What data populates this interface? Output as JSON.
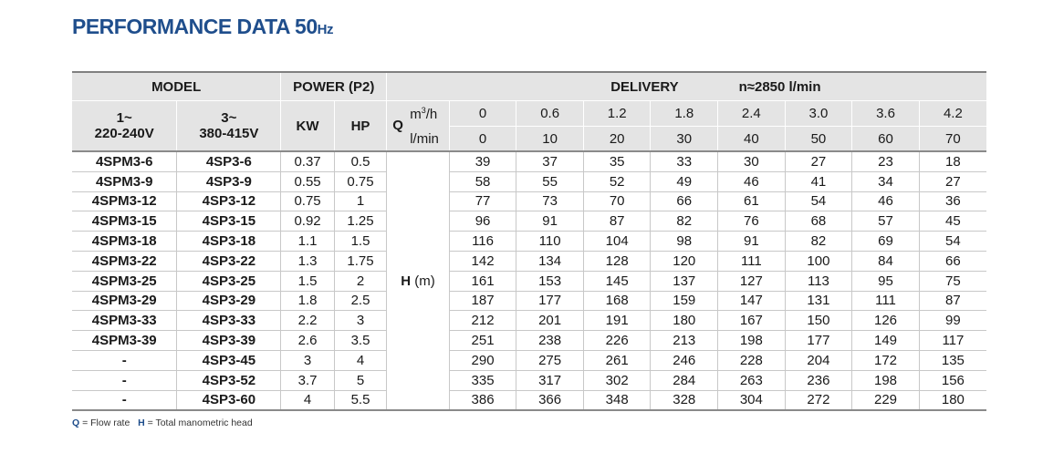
{
  "title": "PERFORMANCE DATA 50",
  "title_unit": "Hz",
  "header": {
    "model": "MODEL",
    "power": "POWER (P2)",
    "delivery": "DELIVERY",
    "speed": "n≈2850 l/min",
    "phase1_line1": "1~",
    "phase1_line2": "220-240V",
    "phase3_line1": "3~",
    "phase3_line2": "380-415V",
    "kw": "KW",
    "hp": "HP",
    "q": "Q",
    "unit_m3h_base": "m",
    "unit_m3h_sup": "3",
    "unit_m3h_tail": "/h",
    "unit_lmin": "l/min",
    "flow_m3h": [
      "0",
      "0.6",
      "1.2",
      "1.8",
      "2.4",
      "3.0",
      "3.6",
      "4.2"
    ],
    "flow_lmin": [
      "0",
      "10",
      "20",
      "30",
      "40",
      "50",
      "60",
      "70"
    ],
    "h_label": "H",
    "h_unit": "(m)"
  },
  "rows": [
    {
      "m1": "4SPM3-6",
      "m3": "4SP3-6",
      "kw": "0.37",
      "hp": "0.5",
      "h": [
        "39",
        "37",
        "35",
        "33",
        "30",
        "27",
        "23",
        "18"
      ]
    },
    {
      "m1": "4SPM3-9",
      "m3": "4SP3-9",
      "kw": "0.55",
      "hp": "0.75",
      "h": [
        "58",
        "55",
        "52",
        "49",
        "46",
        "41",
        "34",
        "27"
      ]
    },
    {
      "m1": "4SPM3-12",
      "m3": "4SP3-12",
      "kw": "0.75",
      "hp": "1",
      "h": [
        "77",
        "73",
        "70",
        "66",
        "61",
        "54",
        "46",
        "36"
      ]
    },
    {
      "m1": "4SPM3-15",
      "m3": "4SP3-15",
      "kw": "0.92",
      "hp": "1.25",
      "h": [
        "96",
        "91",
        "87",
        "82",
        "76",
        "68",
        "57",
        "45"
      ]
    },
    {
      "m1": "4SPM3-18",
      "m3": "4SP3-18",
      "kw": "1.1",
      "hp": "1.5",
      "h": [
        "116",
        "110",
        "104",
        "98",
        "91",
        "82",
        "69",
        "54"
      ]
    },
    {
      "m1": "4SPM3-22",
      "m3": "4SP3-22",
      "kw": "1.3",
      "hp": "1.75",
      "h": [
        "142",
        "134",
        "128",
        "120",
        "111",
        "100",
        "84",
        "66"
      ]
    },
    {
      "m1": "4SPM3-25",
      "m3": "4SP3-25",
      "kw": "1.5",
      "hp": "2",
      "h": [
        "161",
        "153",
        "145",
        "137",
        "127",
        "113",
        "95",
        "75"
      ]
    },
    {
      "m1": "4SPM3-29",
      "m3": "4SP3-29",
      "kw": "1.8",
      "hp": "2.5",
      "h": [
        "187",
        "177",
        "168",
        "159",
        "147",
        "131",
        "111",
        "87"
      ]
    },
    {
      "m1": "4SPM3-33",
      "m3": "4SP3-33",
      "kw": "2.2",
      "hp": "3",
      "h": [
        "212",
        "201",
        "191",
        "180",
        "167",
        "150",
        "126",
        "99"
      ]
    },
    {
      "m1": "4SPM3-39",
      "m3": "4SP3-39",
      "kw": "2.6",
      "hp": "3.5",
      "h": [
        "251",
        "238",
        "226",
        "213",
        "198",
        "177",
        "149",
        "117"
      ]
    },
    {
      "m1": "-",
      "m3": "4SP3-45",
      "kw": "3",
      "hp": "4",
      "h": [
        "290",
        "275",
        "261",
        "246",
        "228",
        "204",
        "172",
        "135"
      ]
    },
    {
      "m1": "-",
      "m3": "4SP3-52",
      "kw": "3.7",
      "hp": "5",
      "h": [
        "335",
        "317",
        "302",
        "284",
        "263",
        "236",
        "198",
        "156"
      ]
    },
    {
      "m1": "-",
      "m3": "4SP3-60",
      "kw": "4",
      "hp": "5.5",
      "h": [
        "386",
        "366",
        "348",
        "328",
        "304",
        "272",
        "229",
        "180"
      ]
    }
  ],
  "footnote": {
    "q_letter": "Q",
    "q_text": " = Flow rate",
    "h_letter": "H",
    "h_text": " = Total manometric head"
  },
  "colors": {
    "title": "#1f4e8c",
    "header_bg": "#e4e4e4"
  }
}
